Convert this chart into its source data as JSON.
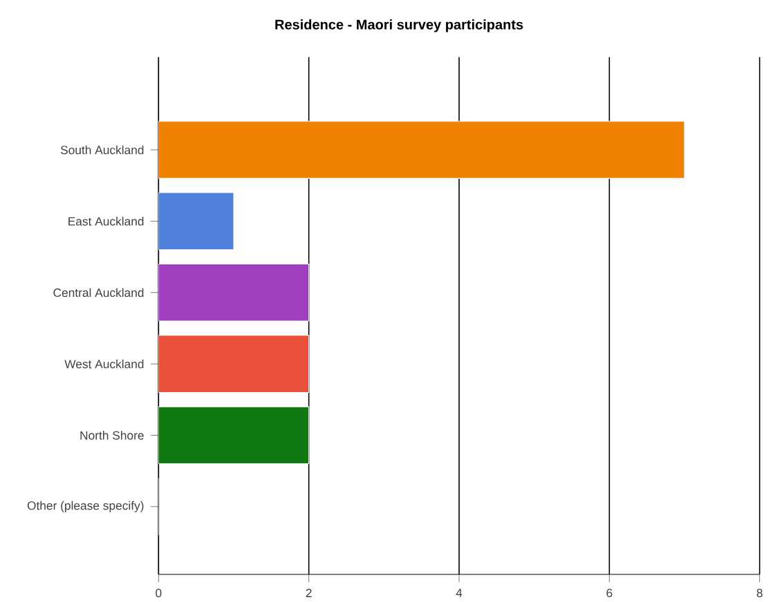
{
  "chart_data": {
    "type": "bar",
    "orientation": "horizontal",
    "title": "Residence - Maori survey participants",
    "categories": [
      "South Auckland",
      "East Auckland",
      "Central Auckland",
      "West Auckland",
      "North Shore",
      "Other (please specify)"
    ],
    "values": [
      7,
      1,
      2,
      2,
      2,
      0
    ],
    "colors": [
      "#f08000",
      "#4f80dc",
      "#a040c0",
      "#e8503a",
      "#107810",
      "#808080"
    ],
    "xlim": [
      0,
      8
    ],
    "xticks": [
      0,
      2,
      4,
      6,
      8
    ],
    "grid": "x"
  }
}
